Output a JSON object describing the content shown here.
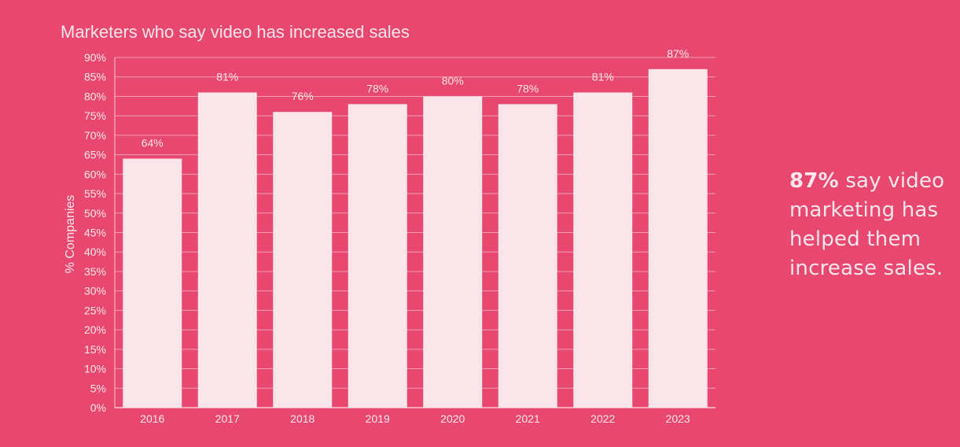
{
  "colors": {
    "background": "#e8476f",
    "bar": "#fae6ea",
    "grid": "#f19db1",
    "axis": "#f8c9d4",
    "text": "#fde6ec"
  },
  "chart_data": {
    "type": "bar",
    "title": "Marketers who say video has increased sales",
    "xlabel": "",
    "ylabel": "% Companies",
    "categories": [
      "2016",
      "2017",
      "2018",
      "2019",
      "2020",
      "2021",
      "2022",
      "2023"
    ],
    "values": [
      64,
      81,
      76,
      78,
      80,
      78,
      81,
      87
    ],
    "data_labels": [
      "64%",
      "81%",
      "76%",
      "78%",
      "80%",
      "78%",
      "81%",
      "87%"
    ],
    "ylim": [
      0,
      90
    ],
    "yticks": [
      0,
      5,
      10,
      15,
      20,
      25,
      30,
      35,
      40,
      45,
      50,
      55,
      60,
      65,
      70,
      75,
      80,
      85,
      90
    ],
    "ytick_labels": [
      "0%",
      "5%",
      "10%",
      "15%",
      "20%",
      "25%",
      "30%",
      "35%",
      "40%",
      "45%",
      "50%",
      "55%",
      "60%",
      "65%",
      "70%",
      "75%",
      "80%",
      "85%",
      "90%"
    ],
    "grid": true
  },
  "callout": {
    "highlight": "87%",
    "text": "say video marketing has helped them increase sales."
  }
}
